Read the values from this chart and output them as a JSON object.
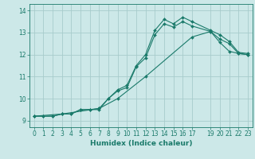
{
  "title": "",
  "xlabel": "Humidex (Indice chaleur)",
  "bg_color": "#cce8e8",
  "grid_color": "#a8cccc",
  "line_color": "#1a7a6a",
  "xlim": [
    -0.5,
    23.5
  ],
  "ylim": [
    8.7,
    14.3
  ],
  "xticks": [
    0,
    1,
    2,
    3,
    4,
    5,
    6,
    7,
    8,
    9,
    10,
    11,
    12,
    13,
    14,
    15,
    16,
    17,
    19,
    20,
    21,
    22,
    23
  ],
  "yticks": [
    9,
    10,
    11,
    12,
    13,
    14
  ],
  "line1_x": [
    0,
    1,
    2,
    3,
    4,
    5,
    6,
    7,
    8,
    9,
    10,
    11,
    12,
    13,
    14,
    15,
    16,
    17,
    19,
    20,
    21,
    22,
    23
  ],
  "line1_y": [
    9.2,
    9.2,
    9.2,
    9.3,
    9.3,
    9.5,
    9.5,
    9.5,
    10.0,
    10.4,
    10.6,
    11.5,
    12.0,
    13.1,
    13.6,
    13.4,
    13.7,
    13.5,
    13.1,
    12.9,
    12.6,
    12.1,
    12.05
  ],
  "line2_x": [
    0,
    1,
    2,
    3,
    4,
    5,
    6,
    7,
    8,
    9,
    10,
    11,
    12,
    13,
    14,
    15,
    16,
    17,
    19,
    20,
    21,
    22,
    23
  ],
  "line2_y": [
    9.2,
    9.2,
    9.2,
    9.3,
    9.3,
    9.5,
    9.5,
    9.55,
    10.0,
    10.35,
    10.5,
    11.45,
    11.85,
    12.9,
    13.4,
    13.25,
    13.5,
    13.3,
    13.05,
    12.7,
    12.5,
    12.05,
    12.0
  ],
  "line3_x": [
    0,
    3,
    7,
    9,
    12,
    17,
    19,
    20,
    21,
    22,
    23
  ],
  "line3_y": [
    9.2,
    9.3,
    9.55,
    10.0,
    11.0,
    12.8,
    13.05,
    12.55,
    12.15,
    12.05,
    12.0
  ],
  "marker": "D",
  "markersize": 2.0,
  "linewidth": 0.8,
  "tick_fontsize": 5.5,
  "xlabel_fontsize": 6.5
}
